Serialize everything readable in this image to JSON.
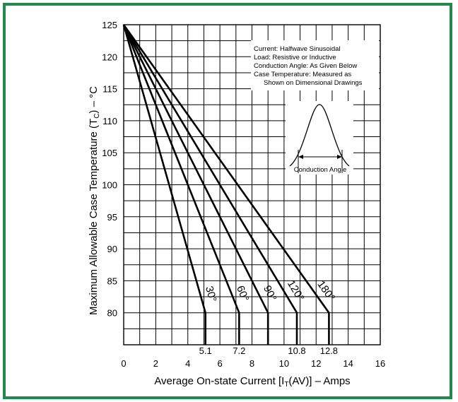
{
  "colors": {
    "border": "#1f8a4c",
    "grid": "#000000",
    "curve": "#000000"
  },
  "chart_data": {
    "type": "line",
    "xlabel": {
      "prefix": "Average On-state Current [I",
      "subscript": "T",
      "suffix": "(AV)] – Amps"
    },
    "ylabel": {
      "prefix": "Maximum Allowable Case Temperature (T",
      "subscript": "C",
      "suffix": ") – °C"
    },
    "xlim": [
      0,
      16
    ],
    "ylim": [
      75,
      125
    ],
    "x_ticks": [
      "0",
      "2",
      "4",
      "6",
      "8",
      "10",
      "12",
      "14",
      "16"
    ],
    "y_ticks": [
      "80",
      "85",
      "90",
      "95",
      "100",
      "105",
      "110",
      "115",
      "120",
      "125"
    ],
    "x_minor_step": 1,
    "y_minor_step": 2.5,
    "grid": true,
    "highlight_ticks": [
      "5.1",
      "7.2",
      "10.8",
      "12.8"
    ],
    "series": [
      {
        "name": "30°",
        "points": [
          [
            0,
            125
          ],
          [
            5.1,
            80
          ],
          [
            5.1,
            75
          ]
        ]
      },
      {
        "name": "60°",
        "points": [
          [
            0,
            125
          ],
          [
            7.2,
            80
          ],
          [
            7.2,
            75
          ]
        ]
      },
      {
        "name": "90°",
        "points": [
          [
            0,
            125
          ],
          [
            9.0,
            80
          ],
          [
            9.0,
            75
          ]
        ]
      },
      {
        "name": "120°",
        "points": [
          [
            0,
            125
          ],
          [
            10.8,
            80
          ],
          [
            10.8,
            75
          ]
        ]
      },
      {
        "name": "180°",
        "points": [
          [
            0,
            125
          ],
          [
            12.8,
            80
          ],
          [
            12.8,
            75
          ]
        ]
      }
    ],
    "notes": [
      "Current: Halfwave Sinusoidal",
      "Load: Resistive or Inductive",
      "Conduction Angle: As Given Below",
      "Case Temperature: Measured as",
      "Shown on Dimensional Drawings"
    ],
    "inset_label": "Conduction Angle"
  }
}
